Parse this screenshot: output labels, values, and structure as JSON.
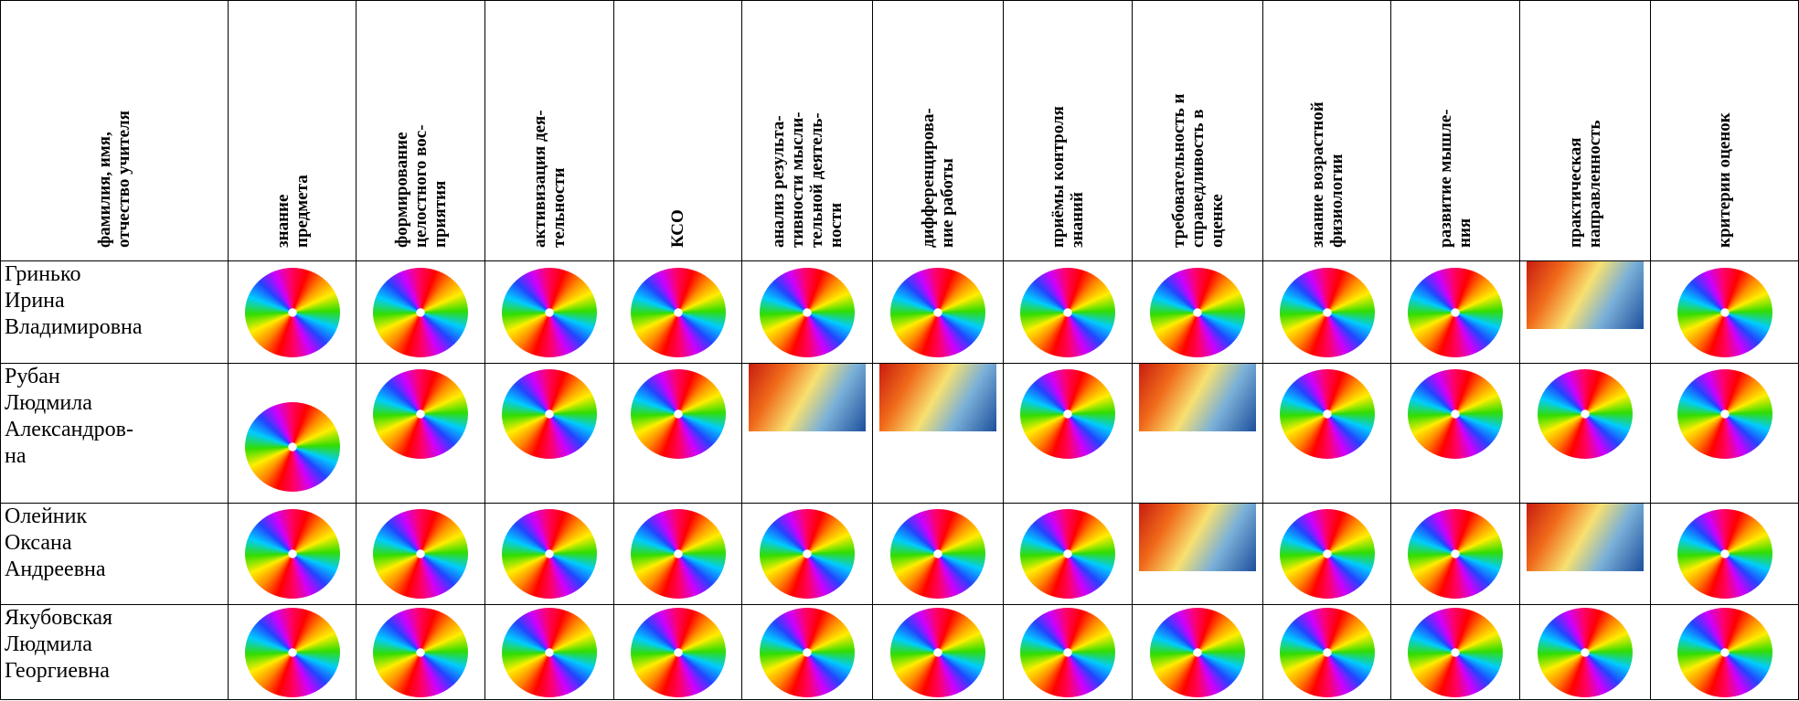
{
  "table": {
    "header": [
      [
        "фамилия, имя,",
        "отчество учителя"
      ],
      [
        "знание",
        "предмета"
      ],
      [
        "формирование",
        "целостного вос-",
        "приятия"
      ],
      [
        "активизация дея-",
        "тельности"
      ],
      [
        "КСО"
      ],
      [
        "анализ результа-",
        "тивности мысли-",
        "тельной деятель-",
        "ности"
      ],
      [
        "дифференцирова-",
        "ние работы"
      ],
      [
        "приёмы контроля",
        "знаний"
      ],
      [
        "требовательность и",
        "справедливость в",
        "оценке"
      ],
      [
        "знание возрастной",
        "физиологии"
      ],
      [
        "развитие мышле-",
        "ния"
      ],
      [
        "практическая",
        "направленность"
      ],
      [
        "критерии оценок"
      ]
    ],
    "rows": [
      [
        "Гринько",
        "Ирина",
        "Владимировна"
      ],
      [
        "Рубан",
        "Людмила",
        "Александров-",
        "на"
      ],
      [
        "Олейник",
        "Оксана",
        "Андреевна"
      ],
      [
        "Якубовская",
        "Людмила",
        "Георгиевна"
      ]
    ]
  }
}
